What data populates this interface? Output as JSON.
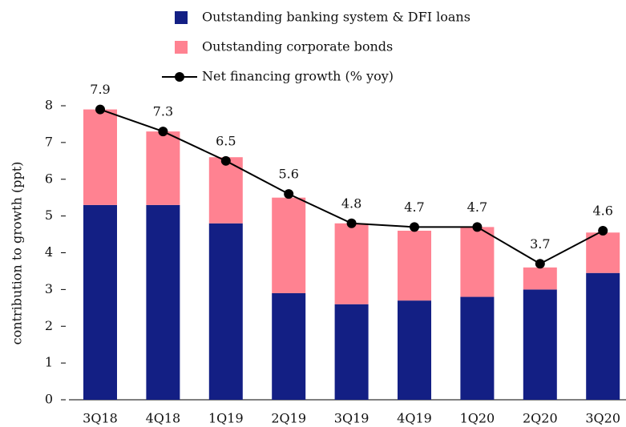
{
  "chart_data": {
    "type": "bar",
    "stacked": true,
    "ylabel": "contribution to growth (ppt)",
    "categories": [
      "3Q18",
      "4Q18",
      "1Q19",
      "2Q19",
      "3Q19",
      "4Q19",
      "1Q20",
      "2Q20",
      "3Q20"
    ],
    "series": [
      {
        "name": "Outstanding banking system & DFI loans",
        "color": "#131f84",
        "values": [
          5.3,
          5.3,
          4.8,
          2.9,
          2.6,
          2.7,
          2.8,
          3.0,
          3.45
        ]
      },
      {
        "name": "Outstanding corporate bonds",
        "color": "#ff8291",
        "values": [
          2.6,
          2.0,
          1.8,
          2.6,
          2.2,
          1.9,
          1.9,
          0.6,
          1.1
        ]
      },
      {
        "name": "Net financing growth (% yoy)",
        "type": "line",
        "color": "#000000",
        "values": [
          7.9,
          7.3,
          6.5,
          5.6,
          4.8,
          4.7,
          4.7,
          3.7,
          4.6
        ]
      }
    ],
    "ylim": [
      0,
      8
    ],
    "yticks": [
      0,
      1,
      2,
      3,
      4,
      5,
      6,
      7,
      8
    ],
    "grid": false
  }
}
